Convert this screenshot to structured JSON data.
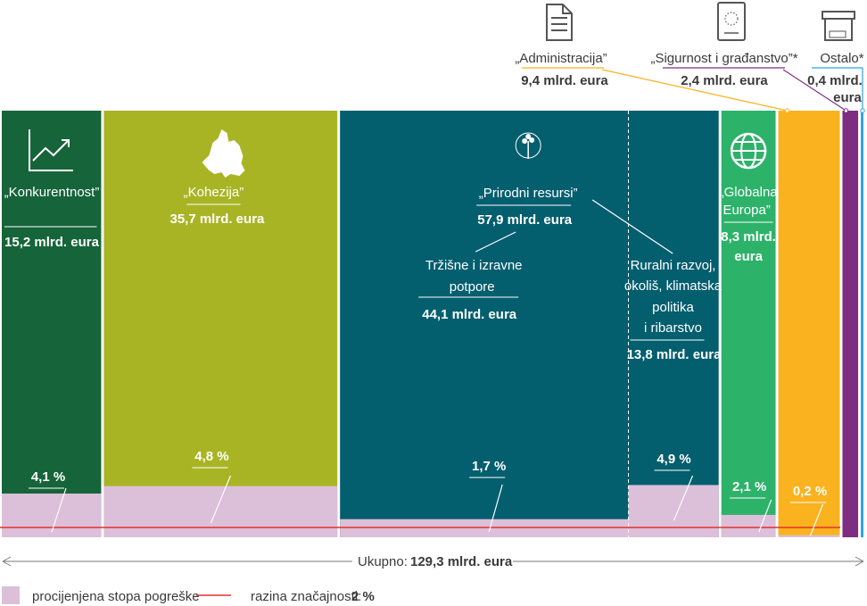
{
  "chart_data": {
    "type": "bar",
    "subtype": "variable-width (mekko) bars",
    "unit": "mlrd. eura",
    "categories": [
      {
        "name": "„Konkurentnost”",
        "value_label": "15,2 mlrd. eura",
        "value": 15.2,
        "error_rate": 4.1,
        "error_label": "4,1 %",
        "color": "#16643a",
        "icon": "growth-chart-icon",
        "label_color": "#ffffff"
      },
      {
        "name": "„Kohezija”",
        "value_label": "35,7 mlrd. eura",
        "value": 35.7,
        "error_rate": 4.8,
        "error_label": "4,8 %",
        "color": "#a9b425",
        "icon": "eu-map-icon",
        "label_color": "#ffffff"
      },
      {
        "name": "„Prirodni resursi”",
        "value_label": "57,9 mlrd. eura",
        "value": 57.9,
        "color": "#035e6e",
        "icon": "tree-icon",
        "label_color": "#ffffff",
        "subcategories": [
          {
            "name_lines": [
              "Tržišne i izravne",
              "potpore"
            ],
            "value_label": "44,1 mlrd. eura",
            "value": 44.1,
            "error_rate": 1.7,
            "error_label": "1,7 %"
          },
          {
            "name_lines": [
              "Ruralni razvoj,",
              "okoliš, klimatska",
              "politika",
              "i ribarstvo"
            ],
            "value_label": "13,8 mlrd. eura",
            "value": 13.8,
            "error_rate": 4.9,
            "error_label": "4,9 %"
          }
        ]
      },
      {
        "name_lines": [
          "„Globalna",
          "Europa”"
        ],
        "value_lines": [
          "8,3 mlrd.",
          "eura"
        ],
        "value": 8.3,
        "error_rate": 2.1,
        "error_label": "2,1 %",
        "color": "#2db26a",
        "icon": "globe-icon",
        "label_color": "#ffffff"
      },
      {
        "name": "„Administracija”",
        "value_label": "9,4 mlrd. eura",
        "value": 9.4,
        "error_rate": 0.2,
        "error_label": "0,2 %",
        "color": "#fbb21f",
        "icon": "document-icon",
        "label_color": "#3a3a3a"
      },
      {
        "name": "„Sigurnost i građanstvo”*",
        "value_label": "2,4 mlrd. eura",
        "value": 2.4,
        "color": "#7d2d82",
        "icon": "eu-passport-icon",
        "label_color": "#3a3a3a"
      },
      {
        "name": "Ostalo*",
        "value_lines": [
          "0,4 mlrd.",
          "eura"
        ],
        "value": 0.4,
        "color": "#29a4dd",
        "icon": "misc-box-icon",
        "label_color": "#3a3a3a"
      }
    ],
    "total": 129.3,
    "total_label": "Ukupno:",
    "total_value_label": "129,3 mlrd. eura",
    "materiality_threshold": 2,
    "legend": [
      {
        "label": "procijenjena stopa pogreške",
        "color": "#dcbfd9",
        "kind": "swatch"
      },
      {
        "label": "razina značajnosti:",
        "value_label": "2 %",
        "color": "#e4322b",
        "kind": "line"
      }
    ]
  }
}
